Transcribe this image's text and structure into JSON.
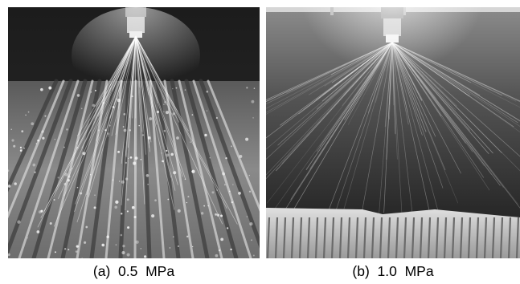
{
  "figure": {
    "panels": [
      {
        "id": "a",
        "label": "(a)",
        "pressure": "0.5 MPa"
      },
      {
        "id": "b",
        "label": "(b)",
        "pressure": "1.0 MPa"
      }
    ]
  },
  "captions": {
    "a": "(a)  0.5  MPa",
    "b": "(b)  1.0  MPa"
  }
}
